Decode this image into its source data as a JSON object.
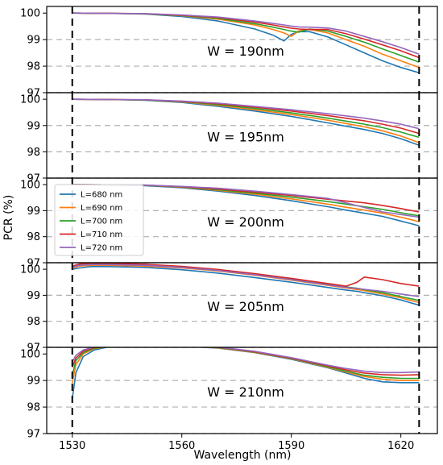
{
  "chart_data": {
    "type": "line",
    "xlabel": "Wavelength (nm)",
    "ylabel": "PCR (%)",
    "xlim": [
      1523,
      1630
    ],
    "ylim": [
      97,
      100.25
    ],
    "x_ticks": [
      1530,
      1560,
      1590,
      1620
    ],
    "y_ticks": [
      97,
      98,
      99,
      100
    ],
    "vertical_dashed_lines": [
      1530,
      1625
    ],
    "grid": "horizontal dashed gray",
    "legend": {
      "placement": "upper-left of third panel",
      "entries": [
        {
          "label": "L=680 nm",
          "color": "#1f77b4"
        },
        {
          "label": "L=690 nm",
          "color": "#ff7f0e"
        },
        {
          "label": "L=700 nm",
          "color": "#2ca02c"
        },
        {
          "label": "L=710 nm",
          "color": "#d62728"
        },
        {
          "label": "L=720 nm",
          "color": "#9467bd"
        }
      ]
    },
    "panels": [
      {
        "label": "W = 190nm",
        "x": [
          1530,
          1540,
          1550,
          1560,
          1570,
          1580,
          1585,
          1588,
          1590,
          1592,
          1595,
          1600,
          1605,
          1610,
          1615,
          1620,
          1625
        ],
        "series": [
          {
            "name": "L=680 nm",
            "values": [
              100.0,
              99.99,
              99.96,
              99.87,
              99.7,
              99.4,
              99.17,
              98.95,
              99.2,
              99.3,
              99.3,
              99.1,
              98.8,
              98.5,
              98.2,
              97.95,
              97.75
            ]
          },
          {
            "name": "L=690 nm",
            "values": [
              100.0,
              99.99,
              99.97,
              99.9,
              99.77,
              99.55,
              99.38,
              99.25,
              99.12,
              99.33,
              99.38,
              99.25,
              99.0,
              98.75,
              98.45,
              98.2,
              97.95
            ]
          },
          {
            "name": "L=700 nm",
            "values": [
              100.0,
              99.99,
              99.97,
              99.91,
              99.8,
              99.6,
              99.47,
              99.38,
              99.32,
              99.28,
              99.4,
              99.32,
              99.12,
              98.9,
              98.65,
              98.4,
              98.15
            ]
          },
          {
            "name": "L=710 nm",
            "values": [
              100.0,
              99.99,
              99.98,
              99.92,
              99.83,
              99.66,
              99.55,
              99.48,
              99.43,
              99.4,
              99.38,
              99.38,
              99.22,
              99.02,
              98.8,
              98.58,
              98.32
            ]
          },
          {
            "name": "L=720 nm",
            "values": [
              100.0,
              99.99,
              99.98,
              99.93,
              99.85,
              99.7,
              99.61,
              99.55,
              99.51,
              99.48,
              99.47,
              99.44,
              99.32,
              99.12,
              98.92,
              98.7,
              98.45
            ]
          }
        ]
      },
      {
        "label": "W = 195nm",
        "x": [
          1530,
          1540,
          1550,
          1560,
          1570,
          1580,
          1590,
          1600,
          1610,
          1615,
          1620,
          1625
        ],
        "series": [
          {
            "name": "L=680 nm",
            "values": [
              100.0,
              99.99,
              99.96,
              99.88,
              99.73,
              99.55,
              99.35,
              99.1,
              98.85,
              98.7,
              98.5,
              98.25
            ]
          },
          {
            "name": "L=690 nm",
            "values": [
              100.0,
              99.99,
              99.97,
              99.9,
              99.77,
              99.6,
              99.42,
              99.2,
              98.95,
              98.8,
              98.6,
              98.35
            ]
          },
          {
            "name": "L=700 nm",
            "values": [
              100.0,
              99.99,
              99.97,
              99.91,
              99.8,
              99.65,
              99.48,
              99.28,
              99.05,
              98.92,
              98.75,
              98.55
            ]
          },
          {
            "name": "L=710 nm",
            "values": [
              100.0,
              99.99,
              99.98,
              99.92,
              99.83,
              99.7,
              99.55,
              99.38,
              99.18,
              99.05,
              98.9,
              98.7
            ]
          },
          {
            "name": "L=720 nm",
            "values": [
              100.0,
              99.99,
              99.98,
              99.93,
              99.85,
              99.73,
              99.6,
              99.45,
              99.28,
              99.17,
              99.05,
              98.88
            ]
          }
        ]
      },
      {
        "label": "W = 200nm",
        "x": [
          1530,
          1540,
          1550,
          1560,
          1570,
          1580,
          1590,
          1600,
          1605,
          1610,
          1615,
          1620,
          1625
        ],
        "series": [
          {
            "name": "L=680 nm",
            "values": [
              100.0,
              99.99,
              99.96,
              99.88,
              99.75,
              99.58,
              99.38,
              99.15,
              99.02,
              98.9,
              98.78,
              98.6,
              98.42
            ]
          },
          {
            "name": "L=690 nm",
            "values": [
              100.0,
              99.99,
              99.97,
              99.9,
              99.78,
              99.63,
              99.45,
              99.25,
              99.13,
              99.02,
              98.9,
              98.75,
              98.58
            ]
          },
          {
            "name": "L=700 nm",
            "values": [
              100.0,
              99.99,
              99.97,
              99.91,
              99.8,
              99.67,
              99.52,
              99.35,
              99.25,
              99.15,
              99.05,
              98.92,
              98.8
            ]
          },
          {
            "name": "L=710 nm",
            "values": [
              100.0,
              99.99,
              99.98,
              99.92,
              99.83,
              99.71,
              99.58,
              99.44,
              99.37,
              99.3,
              99.2,
              99.08,
              98.95
            ]
          },
          {
            "name": "L=720 nm",
            "values": [
              100.0,
              99.99,
              99.98,
              99.93,
              99.86,
              99.75,
              99.62,
              99.47,
              99.3,
              99.12,
              98.95,
              98.85,
              98.75
            ]
          }
        ]
      },
      {
        "label": "W = 205nm",
        "x": [
          1530,
          1532,
          1535,
          1540,
          1550,
          1560,
          1570,
          1580,
          1590,
          1600,
          1605,
          1608,
          1610,
          1615,
          1620,
          1625
        ],
        "series": [
          {
            "name": "L=680 nm",
            "values": [
              100.0,
              100.05,
              100.1,
              100.1,
              100.07,
              99.98,
              99.85,
              99.68,
              99.5,
              99.3,
              99.2,
              99.15,
              99.1,
              98.98,
              98.82,
              98.62
            ]
          },
          {
            "name": "L=690 nm",
            "values": [
              100.05,
              100.12,
              100.15,
              100.15,
              100.12,
              100.05,
              99.93,
              99.77,
              99.58,
              99.38,
              99.28,
              99.22,
              99.18,
              99.05,
              98.9,
              98.72
            ]
          },
          {
            "name": "L=700 nm",
            "values": [
              100.1,
              100.17,
              100.2,
              100.2,
              100.16,
              100.08,
              99.96,
              99.8,
              99.62,
              99.42,
              99.32,
              99.27,
              99.22,
              99.1,
              98.95,
              98.8
            ]
          },
          {
            "name": "L=710 nm",
            "values": [
              100.12,
              100.2,
              100.23,
              100.23,
              100.19,
              100.11,
              99.99,
              99.83,
              99.65,
              99.45,
              99.35,
              99.5,
              99.7,
              99.6,
              99.45,
              99.35
            ]
          },
          {
            "name": "L=720 nm",
            "values": [
              100.08,
              100.15,
              100.18,
              100.18,
              100.15,
              100.07,
              99.95,
              99.79,
              99.6,
              99.4,
              99.3,
              99.26,
              99.23,
              99.15,
              99.05,
              98.95
            ]
          }
        ]
      },
      {
        "label": "W = 210nm",
        "x": [
          1530,
          1531,
          1533,
          1536,
          1540,
          1545,
          1550,
          1560,
          1570,
          1580,
          1590,
          1600,
          1605,
          1610,
          1615,
          1620,
          1625
        ],
        "series": [
          {
            "name": "L=680 nm",
            "values": [
              98.3,
              99.3,
              99.9,
              100.15,
              100.27,
              100.3,
              100.32,
              100.3,
              100.22,
              100.05,
              99.8,
              99.48,
              99.28,
              99.08,
              98.95,
              98.92,
              98.92
            ]
          },
          {
            "name": "L=690 nm",
            "values": [
              98.9,
              99.6,
              100.0,
              100.2,
              100.28,
              100.31,
              100.33,
              100.31,
              100.23,
              100.06,
              99.82,
              99.5,
              99.32,
              99.15,
              99.05,
              99.0,
              99.0
            ]
          },
          {
            "name": "L=700 nm",
            "values": [
              99.2,
              99.75,
              100.05,
              100.22,
              100.29,
              100.32,
              100.34,
              100.32,
              100.24,
              100.07,
              99.83,
              99.52,
              99.35,
              99.2,
              99.12,
              99.08,
              99.08
            ]
          },
          {
            "name": "L=710 nm",
            "values": [
              99.5,
              99.85,
              100.1,
              100.24,
              100.3,
              100.33,
              100.35,
              100.33,
              100.25,
              100.08,
              99.84,
              99.55,
              99.4,
              99.28,
              99.22,
              99.2,
              99.22
            ]
          },
          {
            "name": "L=720 nm",
            "values": [
              99.7,
              99.95,
              100.15,
              100.26,
              100.31,
              100.34,
              100.36,
              100.34,
              100.26,
              100.1,
              99.86,
              99.58,
              99.45,
              99.35,
              99.3,
              99.3,
              99.32
            ]
          }
        ]
      }
    ]
  }
}
